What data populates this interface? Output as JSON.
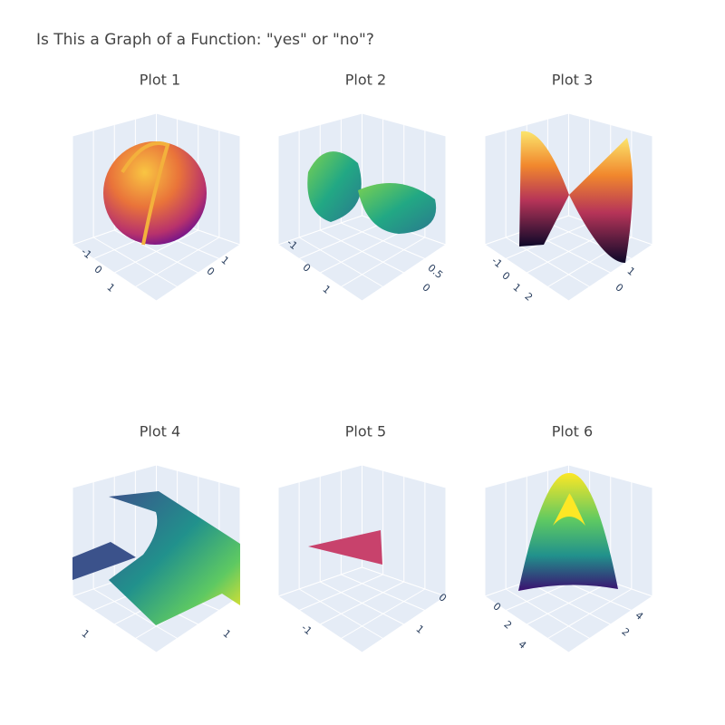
{
  "title": "Is This a Graph of a Function: \"yes\" or \"no\"?",
  "plots": [
    {
      "title": "Plot 1",
      "tick_labels": [
        "-1",
        "0",
        "1",
        "0",
        "1"
      ]
    },
    {
      "title": "Plot 2",
      "tick_labels": [
        "-1",
        "0",
        "1",
        "0",
        "0.5"
      ]
    },
    {
      "title": "Plot 3",
      "tick_labels": [
        "-1",
        "0",
        "1",
        "2",
        "0",
        "1"
      ]
    },
    {
      "title": "Plot 4",
      "tick_labels": [
        "1",
        "1"
      ]
    },
    {
      "title": "Plot 5",
      "tick_labels": [
        "-1",
        "1",
        "0"
      ]
    },
    {
      "title": "Plot 6",
      "tick_labels": [
        "0",
        "2",
        "4",
        "2",
        "4"
      ]
    }
  ]
}
